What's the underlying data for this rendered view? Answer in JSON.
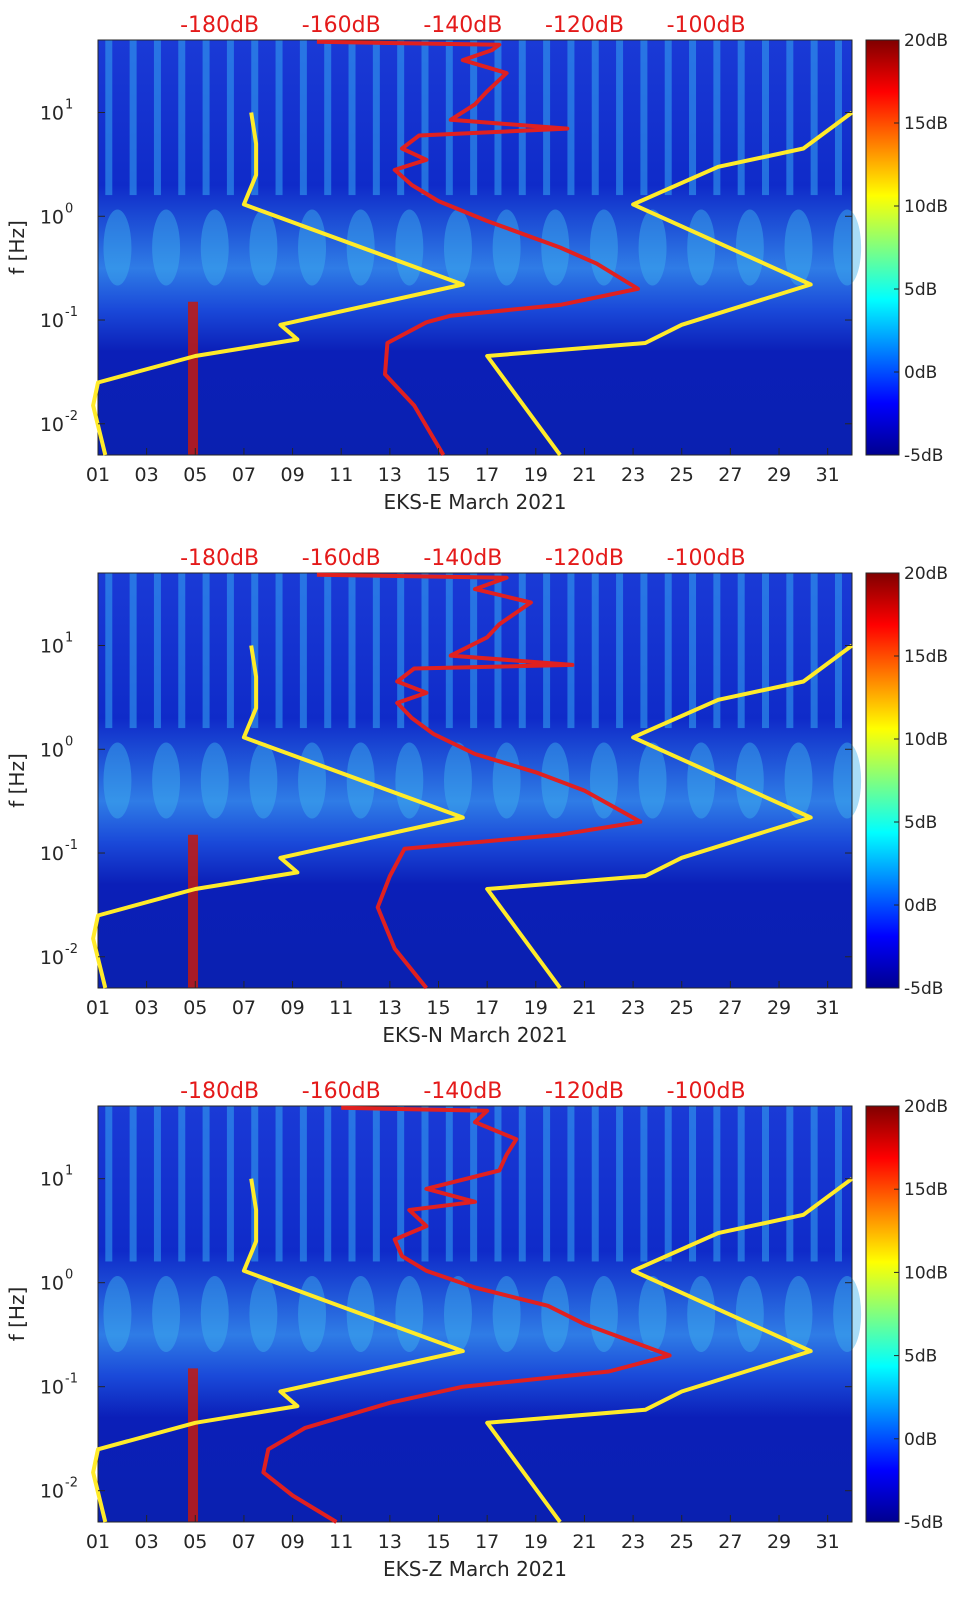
{
  "figure": {
    "description_unit": "spectrogram panels, EKS station, March 2021"
  },
  "colors": {
    "noise_model_lines": "#ffeb2a",
    "median_psd_line": "#e02020",
    "top_db_labels": "#e41a1a",
    "axis_text": "#262626"
  },
  "chart_data": [
    {
      "type": "heatmap",
      "title": "",
      "xlabel": "EKS-E March 2021",
      "ylabel": "f [Hz]",
      "xlim": [
        1,
        32
      ],
      "ylim": [
        0.005,
        50
      ],
      "yscale": "log",
      "x_ticks": [
        "01",
        "03",
        "05",
        "07",
        "09",
        "11",
        "13",
        "15",
        "17",
        "19",
        "21",
        "23",
        "25",
        "27",
        "29",
        "31"
      ],
      "y_ticks": [
        {
          "value": 0.01,
          "base": "10",
          "exp": "-2"
        },
        {
          "value": 0.1,
          "base": "10",
          "exp": "-1"
        },
        {
          "value": 1,
          "base": "10",
          "exp": "0"
        },
        {
          "value": 10,
          "base": "10",
          "exp": "1"
        }
      ],
      "top_db_labels": [
        "-180dB",
        "-160dB",
        "-140dB",
        "-120dB",
        "-100dB"
      ],
      "top_db_positions_day": [
        6,
        11,
        16,
        21,
        26
      ],
      "colorbar": {
        "min": -5,
        "max": 20,
        "ticks": [
          "20dB",
          "15dB",
          "10dB",
          "5dB",
          "0dB",
          "-5dB"
        ],
        "colormap": "jet"
      },
      "series": [
        {
          "name": "low-noise-model-left",
          "color": "yellow",
          "points": [
            [
              1.3,
              0.005
            ],
            [
              0.8,
              0.015
            ],
            [
              1.0,
              0.025
            ],
            [
              5.0,
              0.045
            ],
            [
              9.2,
              0.065
            ],
            [
              8.5,
              0.09
            ],
            [
              16.0,
              0.22
            ],
            [
              7.0,
              1.3
            ],
            [
              7.5,
              2.5
            ],
            [
              7.5,
              5
            ],
            [
              7.3,
              10
            ]
          ]
        },
        {
          "name": "high-noise-model-right",
          "color": "yellow",
          "points": [
            [
              20.0,
              0.005
            ],
            [
              17.0,
              0.045
            ],
            [
              23.5,
              0.06
            ],
            [
              25.0,
              0.09
            ],
            [
              30.3,
              0.22
            ],
            [
              23.0,
              1.3
            ],
            [
              26.5,
              3
            ],
            [
              30.0,
              4.5
            ],
            [
              32.0,
              10
            ]
          ]
        },
        {
          "name": "median-psd",
          "color": "red",
          "points": [
            [
              15.2,
              0.005
            ],
            [
              14.0,
              0.015
            ],
            [
              12.8,
              0.03
            ],
            [
              12.9,
              0.06
            ],
            [
              14.5,
              0.095
            ],
            [
              15.5,
              0.11
            ],
            [
              20.0,
              0.14
            ],
            [
              23.2,
              0.2
            ],
            [
              21.5,
              0.35
            ],
            [
              20.0,
              0.5
            ],
            [
              17.0,
              0.9
            ],
            [
              15.0,
              1.4
            ],
            [
              13.9,
              2
            ],
            [
              13.2,
              2.8
            ],
            [
              14.5,
              3.5
            ],
            [
              13.5,
              4.5
            ],
            [
              14.2,
              6
            ],
            [
              20.3,
              7
            ],
            [
              15.5,
              8.5
            ],
            [
              16.5,
              12
            ],
            [
              17.0,
              16
            ],
            [
              17.8,
              24
            ],
            [
              16.0,
              32
            ],
            [
              17.2,
              40
            ],
            [
              17.5,
              45
            ],
            [
              10.0,
              48
            ]
          ]
        }
      ]
    },
    {
      "type": "heatmap",
      "title": "",
      "xlabel": "EKS-N March 2021",
      "ylabel": "f [Hz]",
      "xlim": [
        1,
        32
      ],
      "ylim": [
        0.005,
        50
      ],
      "yscale": "log",
      "x_ticks": [
        "01",
        "03",
        "05",
        "07",
        "09",
        "11",
        "13",
        "15",
        "17",
        "19",
        "21",
        "23",
        "25",
        "27",
        "29",
        "31"
      ],
      "y_ticks": [
        {
          "value": 0.01,
          "base": "10",
          "exp": "-2"
        },
        {
          "value": 0.1,
          "base": "10",
          "exp": "-1"
        },
        {
          "value": 1,
          "base": "10",
          "exp": "0"
        },
        {
          "value": 10,
          "base": "10",
          "exp": "1"
        }
      ],
      "top_db_labels": [
        "-180dB",
        "-160dB",
        "-140dB",
        "-120dB",
        "-100dB"
      ],
      "top_db_positions_day": [
        6,
        11,
        16,
        21,
        26
      ],
      "colorbar": {
        "min": -5,
        "max": 20,
        "ticks": [
          "20dB",
          "15dB",
          "10dB",
          "5dB",
          "0dB",
          "-5dB"
        ],
        "colormap": "jet"
      },
      "series": [
        {
          "name": "low-noise-model-left",
          "color": "yellow",
          "points": [
            [
              1.3,
              0.005
            ],
            [
              0.8,
              0.015
            ],
            [
              1.0,
              0.025
            ],
            [
              5.0,
              0.045
            ],
            [
              9.2,
              0.065
            ],
            [
              8.5,
              0.09
            ],
            [
              16.0,
              0.22
            ],
            [
              7.0,
              1.3
            ],
            [
              7.5,
              2.5
            ],
            [
              7.5,
              5
            ],
            [
              7.3,
              10
            ]
          ]
        },
        {
          "name": "high-noise-model-right",
          "color": "yellow",
          "points": [
            [
              20.0,
              0.005
            ],
            [
              17.0,
              0.045
            ],
            [
              23.5,
              0.06
            ],
            [
              25.0,
              0.09
            ],
            [
              30.3,
              0.22
            ],
            [
              23.0,
              1.3
            ],
            [
              26.5,
              3
            ],
            [
              30.0,
              4.5
            ],
            [
              32.0,
              10
            ]
          ]
        },
        {
          "name": "median-psd",
          "color": "red",
          "points": [
            [
              14.5,
              0.005
            ],
            [
              13.2,
              0.012
            ],
            [
              12.5,
              0.03
            ],
            [
              13.0,
              0.06
            ],
            [
              13.6,
              0.11
            ],
            [
              20.0,
              0.15
            ],
            [
              23.3,
              0.2
            ],
            [
              21.0,
              0.4
            ],
            [
              19.0,
              0.6
            ],
            [
              16.5,
              0.9
            ],
            [
              14.8,
              1.4
            ],
            [
              13.9,
              2
            ],
            [
              13.3,
              2.8
            ],
            [
              14.5,
              3.5
            ],
            [
              13.3,
              4.5
            ],
            [
              14.0,
              6
            ],
            [
              20.5,
              6.5
            ],
            [
              15.5,
              8
            ],
            [
              17.0,
              12
            ],
            [
              17.5,
              16
            ],
            [
              18.8,
              26
            ],
            [
              16.5,
              35
            ],
            [
              17.8,
              45
            ],
            [
              10.0,
              48
            ]
          ]
        }
      ]
    },
    {
      "type": "heatmap",
      "title": "",
      "xlabel": "EKS-Z March 2021",
      "ylabel": "f [Hz]",
      "xlim": [
        1,
        32
      ],
      "ylim": [
        0.005,
        50
      ],
      "yscale": "log",
      "x_ticks": [
        "01",
        "03",
        "05",
        "07",
        "09",
        "11",
        "13",
        "15",
        "17",
        "19",
        "21",
        "23",
        "25",
        "27",
        "29",
        "31"
      ],
      "y_ticks": [
        {
          "value": 0.01,
          "base": "10",
          "exp": "-2"
        },
        {
          "value": 0.1,
          "base": "10",
          "exp": "-1"
        },
        {
          "value": 1,
          "base": "10",
          "exp": "0"
        },
        {
          "value": 10,
          "base": "10",
          "exp": "1"
        }
      ],
      "top_db_labels": [
        "-180dB",
        "-160dB",
        "-140dB",
        "-120dB",
        "-100dB"
      ],
      "top_db_positions_day": [
        6,
        11,
        16,
        21,
        26
      ],
      "colorbar": {
        "min": -5,
        "max": 20,
        "ticks": [
          "20dB",
          "15dB",
          "10dB",
          "5dB",
          "0dB",
          "-5dB"
        ],
        "colormap": "jet"
      },
      "series": [
        {
          "name": "low-noise-model-left",
          "color": "yellow",
          "points": [
            [
              1.3,
              0.005
            ],
            [
              0.8,
              0.015
            ],
            [
              1.0,
              0.025
            ],
            [
              5.0,
              0.045
            ],
            [
              9.2,
              0.065
            ],
            [
              8.5,
              0.09
            ],
            [
              16.0,
              0.22
            ],
            [
              7.0,
              1.3
            ],
            [
              7.5,
              2.5
            ],
            [
              7.5,
              5
            ],
            [
              7.3,
              10
            ]
          ]
        },
        {
          "name": "high-noise-model-right",
          "color": "yellow",
          "points": [
            [
              20.0,
              0.005
            ],
            [
              17.0,
              0.045
            ],
            [
              23.5,
              0.06
            ],
            [
              25.0,
              0.09
            ],
            [
              30.3,
              0.22
            ],
            [
              23.0,
              1.3
            ],
            [
              26.5,
              3
            ],
            [
              30.0,
              4.5
            ],
            [
              32.0,
              10
            ]
          ]
        },
        {
          "name": "median-psd",
          "color": "red",
          "points": [
            [
              10.8,
              0.005
            ],
            [
              9.0,
              0.009
            ],
            [
              7.8,
              0.015
            ],
            [
              8.0,
              0.025
            ],
            [
              9.5,
              0.04
            ],
            [
              13.0,
              0.07
            ],
            [
              16.0,
              0.1
            ],
            [
              22.0,
              0.14
            ],
            [
              24.5,
              0.2
            ],
            [
              21.0,
              0.4
            ],
            [
              19.5,
              0.6
            ],
            [
              16.5,
              0.9
            ],
            [
              14.5,
              1.3
            ],
            [
              13.5,
              1.8
            ],
            [
              13.2,
              2.6
            ],
            [
              14.5,
              3.5
            ],
            [
              13.8,
              5
            ],
            [
              16.5,
              6
            ],
            [
              14.5,
              8
            ],
            [
              17.5,
              12
            ],
            [
              17.8,
              17
            ],
            [
              18.2,
              24
            ],
            [
              16.5,
              35
            ],
            [
              17.0,
              45
            ],
            [
              11.0,
              48
            ]
          ]
        }
      ]
    }
  ]
}
